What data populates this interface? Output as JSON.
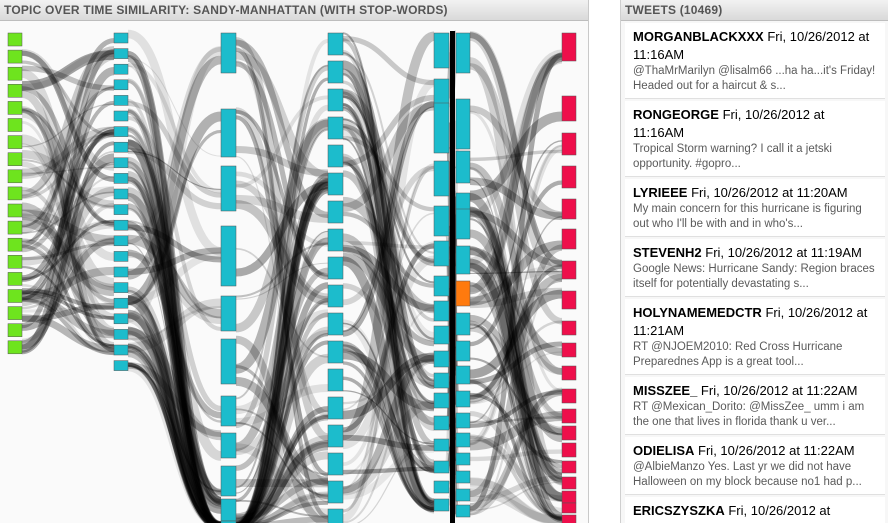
{
  "topic_panel": {
    "title": "TOPIC OVER TIME SIMILARITY: SANDY-MANHATTAN (WITH STOP-WORDS)"
  },
  "tweets_panel": {
    "title": "TWEETS (10469)",
    "tweets": [
      {
        "user": "MORGANBLACKXXX",
        "time": "Fri, 10/26/2012 at 11:16AM",
        "text": "@ThaMrMarilyn @lisalm66 ...ha ha...it's Friday! Headed out for a haircut & s..."
      },
      {
        "user": "RONGEORGE",
        "time": "Fri, 10/26/2012 at 11:16AM",
        "text": "Tropical Storm warning? I call it a jetski opportunity. #gopro..."
      },
      {
        "user": "LYRIEEE",
        "time": "Fri, 10/26/2012 at 11:20AM",
        "text": "My main concern for this hurricane is figuring out who I'll be with and in who's..."
      },
      {
        "user": "STEVENH2",
        "time": "Fri, 10/26/2012 at 11:19AM",
        "text": "Google News: Hurricane Sandy: Region braces itself for potentially devastating s..."
      },
      {
        "user": "HOLYNAMEMEDCTR",
        "time": "Fri, 10/26/2012 at 11:21AM",
        "text": "RT @NJOEM2010: Red Cross Hurricane Preparednes App is a great tool..."
      },
      {
        "user": "MISSZEE_",
        "time": "Fri, 10/26/2012 at 11:22AM",
        "text": "RT @Mexican_Dorito: @MissZee_ umm i am the one that lives in florida thank u ver..."
      },
      {
        "user": "ODIELISA",
        "time": "Fri, 10/26/2012 at 11:22AM",
        "text": "@AlbieManzo Yes. Last yr we did not have Halloween on my block because no1 had p..."
      },
      {
        "user": "ERICSZYSZKA",
        "time": "Fri, 10/26/2012 at",
        "text": ""
      }
    ]
  },
  "colors": {
    "column1": "#6ee41e",
    "columns_mid": "#1cbccc",
    "column_last": "#ee0f4b",
    "highlight": "#ff7a0e",
    "link": "#000000"
  },
  "graph": {
    "columns": [
      {
        "key": "c1",
        "color": "column1",
        "count": 19
      },
      {
        "key": "c2",
        "color": "columns_mid",
        "count": 22
      },
      {
        "key": "c3",
        "color": "columns_mid",
        "count": 16
      },
      {
        "key": "c4",
        "color": "columns_mid",
        "count": 18
      },
      {
        "key": "c5",
        "color": "columns_mid",
        "count": 17
      },
      {
        "key": "c6",
        "color": "columns_mid",
        "count": 17,
        "highlight_index": 6
      },
      {
        "key": "c7",
        "color": "column_last",
        "count": 20
      }
    ]
  }
}
